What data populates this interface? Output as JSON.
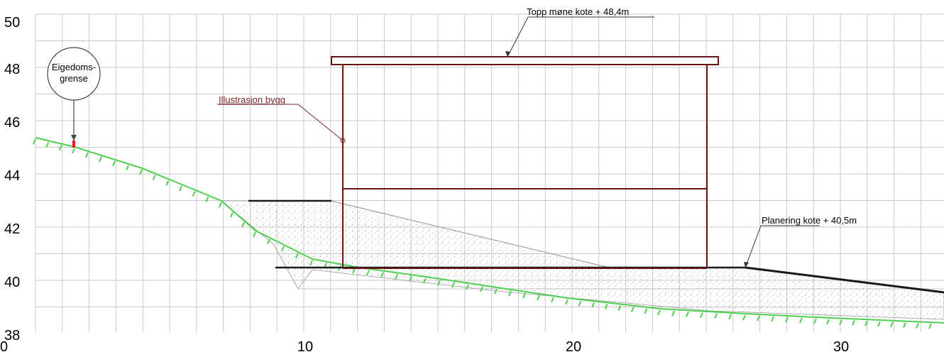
{
  "x_ticks": [
    "0",
    "10",
    "20",
    "30"
  ],
  "y_ticks": [
    "50",
    "48",
    "46",
    "44",
    "42",
    "40",
    "38"
  ],
  "labels": {
    "roof_level": "Topp møne kote + 48,4m",
    "building_illustration": "Illustrasjon bygg",
    "grading_level": "Planering kote + 40,5m",
    "property_line_line1": "Eigedoms-",
    "property_line_line2": "grense"
  },
  "colors": {
    "building": "#6b1414",
    "terrain": "#4fcf4f",
    "property_marker": "#e01a1a",
    "grid": "#c9c9c9",
    "fill_dots": "#8a8a8a"
  }
}
